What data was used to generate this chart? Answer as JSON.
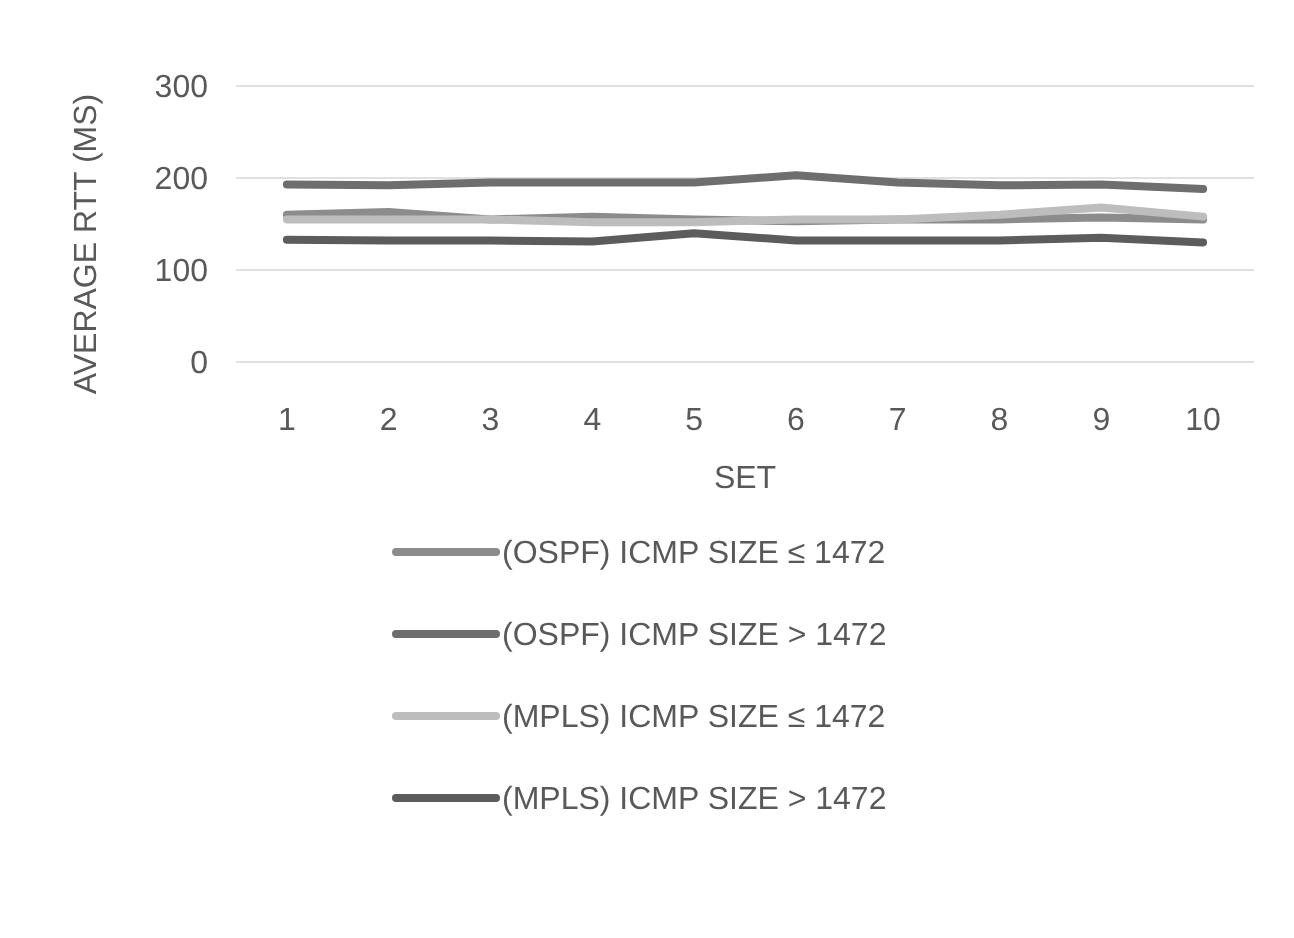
{
  "chart_data": {
    "type": "line",
    "xlabel": "SET",
    "ylabel": "AVERAGE RTT (MS)",
    "categories": [
      "1",
      "2",
      "3",
      "4",
      "5",
      "6",
      "7",
      "8",
      "9",
      "10"
    ],
    "ylim": [
      0,
      300
    ],
    "yticks": [
      0,
      100,
      200,
      300
    ],
    "grid": "y",
    "legend": "bottom",
    "marker": "none",
    "line_style": "solid",
    "series": [
      {
        "name": "(OSPF) ICMP SIZE ≤ 1472",
        "color": "#8c8c8c",
        "values": [
          160,
          163,
          155,
          158,
          155,
          153,
          155,
          155,
          157,
          155
        ]
      },
      {
        "name": "(OSPF) ICMP SIZE > 1472",
        "color": "#6e6e6e",
        "values": [
          193,
          192,
          195,
          195,
          195,
          203,
          195,
          192,
          193,
          188
        ]
      },
      {
        "name": "(MPLS) ICMP SIZE ≤ 1472",
        "color": "#bdbdbd",
        "values": [
          155,
          155,
          155,
          152,
          152,
          155,
          155,
          160,
          168,
          158
        ]
      },
      {
        "name": "(MPLS) ICMP SIZE > 1472",
        "color": "#5c5c5c",
        "values": [
          133,
          132,
          132,
          131,
          140,
          132,
          132,
          132,
          135,
          130
        ]
      }
    ]
  }
}
